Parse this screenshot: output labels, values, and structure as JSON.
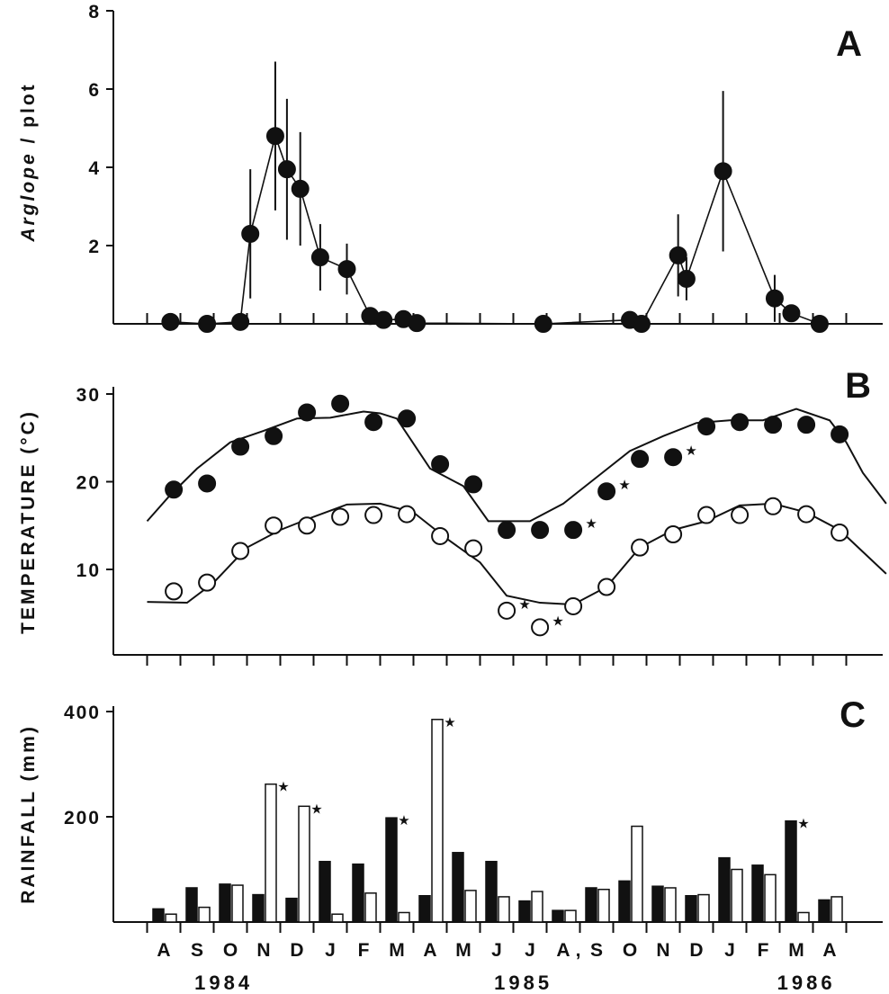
{
  "chart_data": [
    {
      "panel": "A",
      "type": "line",
      "ylabel_italic": "Arglope",
      "ylabel_rest": " / plot",
      "ylim": [
        0,
        8
      ],
      "yticks": [
        2,
        4,
        6,
        8
      ],
      "points": [
        {
          "x": 0.2,
          "y": 0.05,
          "err": 0
        },
        {
          "x": 1.3,
          "y": 0.0,
          "err": 0
        },
        {
          "x": 2.3,
          "y": 0.05,
          "err": 0
        },
        {
          "x": 2.6,
          "y": 2.3,
          "err": 1.65
        },
        {
          "x": 3.35,
          "y": 4.8,
          "err": 1.9
        },
        {
          "x": 3.7,
          "y": 3.95,
          "err": 1.8
        },
        {
          "x": 4.1,
          "y": 3.45,
          "err": 1.45
        },
        {
          "x": 4.7,
          "y": 1.7,
          "err": 0.85
        },
        {
          "x": 5.5,
          "y": 1.4,
          "err": 0.65
        },
        {
          "x": 6.2,
          "y": 0.2,
          "err": 0
        },
        {
          "x": 6.6,
          "y": 0.1,
          "err": 0
        },
        {
          "x": 7.2,
          "y": 0.12,
          "err": 0
        },
        {
          "x": 7.6,
          "y": 0.02,
          "err": 0
        },
        {
          "x": 11.4,
          "y": 0.0,
          "err": 0
        },
        {
          "x": 14.0,
          "y": 0.1,
          "err": 0
        },
        {
          "x": 14.35,
          "y": 0.0,
          "err": 0
        },
        {
          "x": 15.45,
          "y": 1.75,
          "err": 1.05
        },
        {
          "x": 15.7,
          "y": 1.15,
          "err": 0.55
        },
        {
          "x": 16.8,
          "y": 3.9,
          "err": 2.05
        },
        {
          "x": 18.35,
          "y": 0.65,
          "err": 0.6
        },
        {
          "x": 18.85,
          "y": 0.27,
          "err": 0
        },
        {
          "x": 19.7,
          "y": 0.0,
          "err": 0
        }
      ]
    },
    {
      "panel": "B",
      "type": "line",
      "ylabel": "TEMPERATURE (°C)",
      "ylim": [
        2,
        32
      ],
      "yticks": [
        10,
        20,
        30
      ],
      "series": [
        {
          "style": "filled-circles",
          "curve": [
            [
              -0.5,
              15.5
            ],
            [
              0.2,
              18.5
            ],
            [
              1.0,
              21.5
            ],
            [
              2.0,
              24.5
            ],
            [
              3.0,
              25.8
            ],
            [
              4.0,
              27.2
            ],
            [
              5.0,
              27.3
            ],
            [
              6.0,
              28.0
            ],
            [
              6.5,
              27.8
            ],
            [
              7.0,
              27.2
            ],
            [
              8.0,
              21.5
            ],
            [
              9.0,
              19.5
            ],
            [
              9.75,
              15.5
            ],
            [
              10.65,
              15.5
            ],
            [
              11.0,
              15.5
            ],
            [
              12.0,
              17.5
            ],
            [
              13.0,
              20.5
            ],
            [
              14.0,
              23.5
            ],
            [
              15.0,
              25.2
            ],
            [
              16.0,
              26.7
            ],
            [
              17.0,
              27.0
            ],
            [
              18.0,
              27.0
            ],
            [
              19.0,
              28.3
            ],
            [
              20.0,
              27.0
            ],
            [
              20.5,
              24.5
            ],
            [
              21.0,
              21.0
            ],
            [
              21.7,
              17.5
            ]
          ],
          "points": [
            {
              "x": 0.3,
              "y": 19.1,
              "star": false
            },
            {
              "x": 1.3,
              "y": 19.8,
              "star": false
            },
            {
              "x": 2.3,
              "y": 24.0,
              "star": false
            },
            {
              "x": 3.3,
              "y": 25.2,
              "star": false
            },
            {
              "x": 4.3,
              "y": 27.9,
              "star": false
            },
            {
              "x": 5.3,
              "y": 28.9,
              "star": false
            },
            {
              "x": 6.3,
              "y": 26.8,
              "star": false
            },
            {
              "x": 7.3,
              "y": 27.2,
              "star": false
            },
            {
              "x": 8.3,
              "y": 22.0,
              "star": false
            },
            {
              "x": 9.3,
              "y": 19.7,
              "star": false
            },
            {
              "x": 10.3,
              "y": 14.5,
              "star": false
            },
            {
              "x": 11.3,
              "y": 14.5,
              "star": false
            },
            {
              "x": 12.3,
              "y": 14.5,
              "star": true
            },
            {
              "x": 13.3,
              "y": 18.9,
              "star": true
            },
            {
              "x": 14.3,
              "y": 22.6,
              "star": false
            },
            {
              "x": 15.3,
              "y": 22.8,
              "star": true
            },
            {
              "x": 16.3,
              "y": 26.3,
              "star": false
            },
            {
              "x": 17.3,
              "y": 26.8,
              "star": false
            },
            {
              "x": 18.3,
              "y": 26.5,
              "star": false
            },
            {
              "x": 19.3,
              "y": 26.5,
              "star": false
            },
            {
              "x": 20.3,
              "y": 25.4,
              "star": false
            }
          ]
        },
        {
          "style": "open-circles",
          "curve": [
            [
              -0.5,
              6.3
            ],
            [
              0.7,
              6.2
            ],
            [
              1.5,
              8.5
            ],
            [
              2.5,
              12.5
            ],
            [
              3.5,
              14.5
            ],
            [
              4.5,
              16.0
            ],
            [
              5.5,
              17.4
            ],
            [
              6.5,
              17.5
            ],
            [
              7.5,
              16.5
            ],
            [
              8.5,
              13.5
            ],
            [
              9.5,
              10.8
            ],
            [
              10.3,
              7.0
            ],
            [
              11.3,
              6.2
            ],
            [
              12.3,
              6.0
            ],
            [
              13.3,
              8.0
            ],
            [
              14.3,
              12.5
            ],
            [
              15.3,
              14.5
            ],
            [
              16.3,
              15.5
            ],
            [
              17.3,
              17.3
            ],
            [
              18.3,
              17.5
            ],
            [
              19.3,
              16.5
            ],
            [
              20.3,
              14.5
            ],
            [
              21.0,
              12.0
            ],
            [
              21.7,
              9.5
            ]
          ],
          "points": [
            {
              "x": 0.3,
              "y": 7.5,
              "star": false
            },
            {
              "x": 1.3,
              "y": 8.5,
              "star": false
            },
            {
              "x": 2.3,
              "y": 12.1,
              "star": false
            },
            {
              "x": 3.3,
              "y": 15.0,
              "star": false
            },
            {
              "x": 4.3,
              "y": 15.0,
              "star": false
            },
            {
              "x": 5.3,
              "y": 16.0,
              "star": false
            },
            {
              "x": 6.3,
              "y": 16.2,
              "star": false
            },
            {
              "x": 7.3,
              "y": 16.3,
              "star": false
            },
            {
              "x": 8.3,
              "y": 13.8,
              "star": false
            },
            {
              "x": 9.3,
              "y": 12.4,
              "star": false
            },
            {
              "x": 10.3,
              "y": 5.3,
              "star": true
            },
            {
              "x": 11.3,
              "y": 3.4,
              "star": true
            },
            {
              "x": 12.3,
              "y": 5.8,
              "star": false
            },
            {
              "x": 13.3,
              "y": 8.0,
              "star": false
            },
            {
              "x": 14.3,
              "y": 12.5,
              "star": false
            },
            {
              "x": 15.3,
              "y": 14.0,
              "star": false
            },
            {
              "x": 16.3,
              "y": 16.2,
              "star": false
            },
            {
              "x": 17.3,
              "y": 16.2,
              "star": false
            },
            {
              "x": 18.3,
              "y": 17.2,
              "star": false
            },
            {
              "x": 19.3,
              "y": 16.3,
              "star": false
            },
            {
              "x": 20.3,
              "y": 14.2,
              "star": false
            }
          ]
        }
      ]
    },
    {
      "panel": "C",
      "type": "bar",
      "ylabel": "RAINFALL (mm)",
      "ylim": [
        0,
        400
      ],
      "yticks": [
        200,
        400
      ],
      "categories": [
        "A",
        "S",
        "O",
        "N",
        "D",
        "J",
        "F",
        "M",
        "A",
        "M",
        "J",
        "J",
        "A",
        "S",
        "O",
        "N",
        "D",
        "J",
        "F",
        "M",
        "A"
      ],
      "series": [
        {
          "style": "filled",
          "values": [
            25,
            65,
            72,
            52,
            45,
            115,
            110,
            198,
            50,
            132,
            115,
            40,
            22,
            65,
            78,
            68,
            50,
            122,
            108,
            192,
            42
          ]
        },
        {
          "style": "open",
          "values": [
            15,
            28,
            70,
            262,
            220,
            15,
            55,
            18,
            385,
            60,
            48,
            58,
            22,
            62,
            182,
            65,
            52,
            100,
            90,
            18,
            48
          ]
        }
      ],
      "starred_bars": [
        {
          "index": 3,
          "series": 1
        },
        {
          "index": 4,
          "series": 1
        },
        {
          "index": 7,
          "series": 0
        },
        {
          "index": 8,
          "series": 1
        },
        {
          "index": 19,
          "series": 0
        }
      ],
      "month_labels": [
        "A",
        "S",
        "O",
        "N",
        "D",
        "J",
        "F",
        "M",
        "A",
        "M",
        "J",
        "J",
        "A",
        "S",
        "O",
        "N",
        "D",
        "J",
        "F",
        "M",
        "A"
      ],
      "year_labels": [
        {
          "text": "1984",
          "x": 1.8
        },
        {
          "text": "1985",
          "x": 10.8
        },
        {
          "text": "1986",
          "x": 19.3
        }
      ]
    }
  ],
  "star_symbol": "★",
  "decimal_mark": ","
}
